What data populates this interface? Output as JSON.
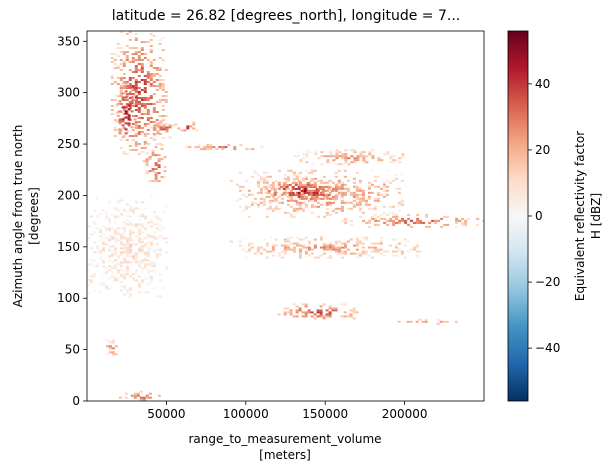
{
  "chart_data": {
    "type": "heatmap",
    "title": "latitude = 26.82 [degrees_north], longitude = 7...",
    "xlabel_line1": "range_to_measurement_volume",
    "xlabel_line2": "[meters]",
    "ylabel_line1": "Azimuth angle from true north",
    "ylabel_line2": "[degrees]",
    "colorbar_label_line1": "Equivalent reflectivity factor",
    "colorbar_label_line2": "H [dBZ]",
    "colormap": "RdBu_r",
    "xlim": [
      0,
      250000
    ],
    "ylim": [
      0,
      360
    ],
    "vlim": [
      -56,
      56
    ],
    "x_ticks": [
      50000,
      100000,
      150000,
      200000
    ],
    "x_tick_labels": [
      "50000",
      "100000",
      "150000",
      "200000"
    ],
    "y_ticks": [
      0,
      50,
      100,
      150,
      200,
      250,
      300,
      350
    ],
    "y_tick_labels": [
      "0",
      "50",
      "100",
      "150",
      "200",
      "250",
      "300",
      "350"
    ],
    "colorbar_ticks": [
      -40,
      -20,
      0,
      20,
      40
    ],
    "colorbar_tick_labels": [
      "−40",
      "−20",
      "0",
      "20",
      "40"
    ],
    "echo_regions": [
      {
        "x": [
          15000,
          50000
        ],
        "y": [
          240,
          360
        ],
        "dbz": 40
      },
      {
        "x": [
          18000,
          30000
        ],
        "y": [
          250,
          310
        ],
        "dbz": 52
      },
      {
        "x": [
          35000,
          50000
        ],
        "y": [
          210,
          250
        ],
        "dbz": 35
      },
      {
        "x": [
          40000,
          55000
        ],
        "y": [
          255,
          275
        ],
        "dbz": 38
      },
      {
        "x": [
          55000,
          70000
        ],
        "y": [
          262,
          272
        ],
        "dbz": 40
      },
      {
        "x": [
          60000,
          110000
        ],
        "y": [
          245,
          250
        ],
        "dbz": 35
      },
      {
        "x": [
          130000,
          200000
        ],
        "y": [
          230,
          245
        ],
        "dbz": 25
      },
      {
        "x": [
          90000,
          200000
        ],
        "y": [
          180,
          225
        ],
        "dbz": 30
      },
      {
        "x": [
          110000,
          160000
        ],
        "y": [
          195,
          215
        ],
        "dbz": 48
      },
      {
        "x": [
          160000,
          250000
        ],
        "y": [
          170,
          182
        ],
        "dbz": 35
      },
      {
        "x": [
          90000,
          210000
        ],
        "y": [
          140,
          160
        ],
        "dbz": 25
      },
      {
        "x": [
          120000,
          170000
        ],
        "y": [
          80,
          95
        ],
        "dbz": 40
      },
      {
        "x": [
          190000,
          240000
        ],
        "y": [
          75,
          80
        ],
        "dbz": 30
      },
      {
        "x": [
          10000,
          20000
        ],
        "y": [
          45,
          60
        ],
        "dbz": 30
      },
      {
        "x": [
          20000,
          45000
        ],
        "y": [
          0,
          10
        ],
        "dbz": 35
      },
      {
        "x": [
          0,
          50000
        ],
        "y": [
          100,
          200
        ],
        "dbz": 8
      }
    ]
  }
}
